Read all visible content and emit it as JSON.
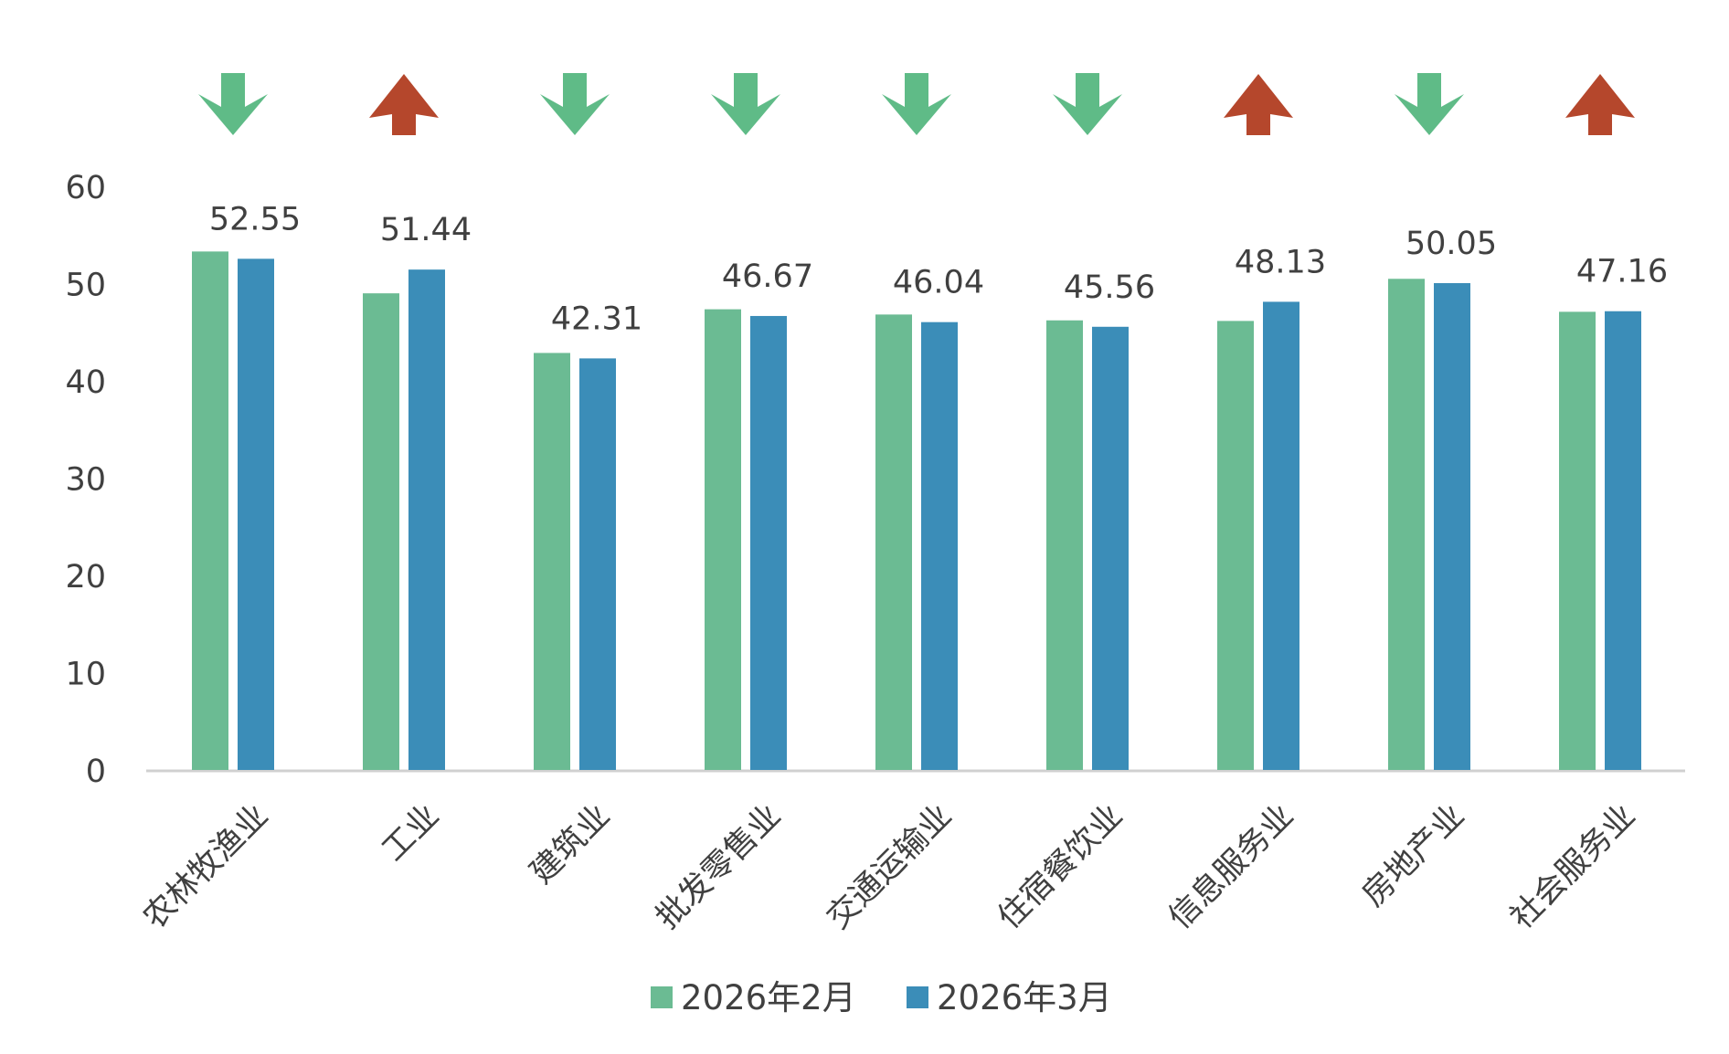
{
  "chart_data": {
    "type": "bar",
    "title": "",
    "xlabel": "",
    "ylabel": "",
    "ylim": [
      0,
      60
    ],
    "yticks": [
      0,
      10,
      20,
      30,
      40,
      50,
      60
    ],
    "grid": false,
    "legend_position": "bottom",
    "categories": [
      "农林牧渔业",
      "工业",
      "建筑业",
      "批发零售业",
      "交通运输业",
      "住宿餐饮业",
      "信息服务业",
      "房地产业",
      "社会服务业"
    ],
    "series": [
      {
        "name": "2026年2月",
        "color": "#6bbb93",
        "values": [
          53.3,
          49.0,
          42.87,
          47.36,
          46.82,
          46.22,
          46.16,
          50.49,
          47.1
        ]
      },
      {
        "name": "2026年3月",
        "color": "#3b8db8",
        "values": [
          52.55,
          51.44,
          42.31,
          46.67,
          46.04,
          45.56,
          48.13,
          50.05,
          47.16
        ]
      }
    ],
    "data_labels": [
      "52.55",
      "51.44",
      "42.31",
      "46.67",
      "46.04",
      "45.56",
      "48.13",
      "50.05",
      "47.16"
    ],
    "trend_arrows": [
      "down",
      "up",
      "down",
      "down",
      "down",
      "down",
      "up",
      "down",
      "up"
    ],
    "arrow_colors": {
      "up": "#b5472c",
      "down": "#5fbb87"
    }
  }
}
